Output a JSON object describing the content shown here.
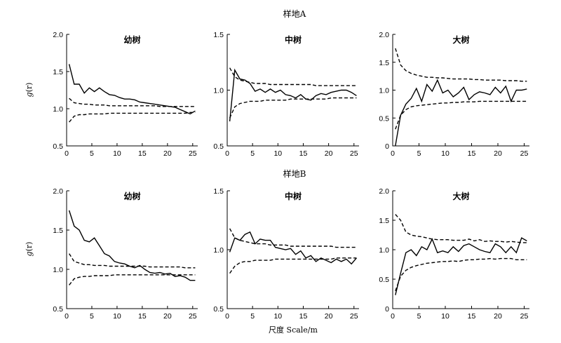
{
  "figure": {
    "row_titles": [
      "样地A",
      "样地B"
    ],
    "xlabel": "尺度 Scale/m",
    "ylabel_main": "g",
    "ylabel_arg": "(r)"
  },
  "chart_data": [
    {
      "type": "line",
      "site": "样地A",
      "title": "幼树",
      "xlim": [
        0,
        26
      ],
      "ylim": [
        0.5,
        2.0
      ],
      "xticks": [
        0,
        5,
        10,
        15,
        20,
        25
      ],
      "yticks": [
        0.5,
        1.0,
        1.5,
        2.0
      ],
      "ytick_labels": [
        "0.5",
        "1.0",
        "1.5",
        "2.0"
      ],
      "x": [
        0.5,
        1.5,
        2.5,
        3.5,
        4.5,
        5.5,
        6.5,
        7.5,
        8.5,
        9.5,
        10.5,
        11.5,
        12.5,
        13.5,
        14.5,
        15.5,
        16.5,
        17.5,
        18.5,
        19.5,
        20.5,
        21.5,
        22.5,
        23.5,
        24.5,
        25.5
      ],
      "series": [
        {
          "role": "observed",
          "values": [
            1.6,
            1.33,
            1.33,
            1.21,
            1.28,
            1.23,
            1.28,
            1.23,
            1.19,
            1.18,
            1.15,
            1.13,
            1.13,
            1.12,
            1.09,
            1.08,
            1.07,
            1.06,
            1.05,
            1.04,
            1.03,
            1.02,
            0.99,
            0.96,
            0.93,
            0.97
          ]
        },
        {
          "role": "upper",
          "values": [
            1.14,
            1.08,
            1.07,
            1.06,
            1.06,
            1.05,
            1.05,
            1.05,
            1.04,
            1.04,
            1.04,
            1.04,
            1.04,
            1.04,
            1.04,
            1.04,
            1.04,
            1.04,
            1.03,
            1.03,
            1.03,
            1.03,
            1.03,
            1.03,
            1.03,
            1.03
          ]
        },
        {
          "role": "lower",
          "values": [
            0.82,
            0.9,
            0.92,
            0.92,
            0.93,
            0.93,
            0.93,
            0.93,
            0.94,
            0.94,
            0.94,
            0.94,
            0.94,
            0.94,
            0.94,
            0.94,
            0.94,
            0.94,
            0.94,
            0.94,
            0.94,
            0.94,
            0.94,
            0.94,
            0.95,
            0.95
          ]
        }
      ]
    },
    {
      "type": "line",
      "site": "样地A",
      "title": "中树",
      "xlim": [
        0,
        26
      ],
      "ylim": [
        0.5,
        1.5
      ],
      "xticks": [
        0,
        5,
        10,
        15,
        20,
        25
      ],
      "yticks": [
        0.5,
        1.0,
        1.5
      ],
      "ytick_labels": [
        "0.5",
        "1.0",
        "1.5"
      ],
      "x": [
        0.5,
        1.5,
        2.5,
        3.5,
        4.5,
        5.5,
        6.5,
        7.5,
        8.5,
        9.5,
        10.5,
        11.5,
        12.5,
        13.5,
        14.5,
        15.5,
        16.5,
        17.5,
        18.5,
        19.5,
        20.5,
        21.5,
        22.5,
        23.5,
        24.5,
        25.5
      ],
      "series": [
        {
          "role": "observed",
          "values": [
            0.72,
            1.18,
            1.1,
            1.09,
            1.06,
            0.99,
            1.01,
            0.98,
            1.01,
            0.98,
            1.0,
            0.96,
            0.95,
            0.93,
            0.96,
            0.92,
            0.91,
            0.95,
            0.97,
            0.96,
            0.98,
            0.99,
            1.0,
            1.0,
            0.98,
            0.95
          ]
        },
        {
          "role": "upper",
          "values": [
            1.2,
            1.12,
            1.09,
            1.08,
            1.07,
            1.06,
            1.06,
            1.06,
            1.05,
            1.05,
            1.05,
            1.05,
            1.05,
            1.05,
            1.05,
            1.05,
            1.05,
            1.04,
            1.04,
            1.04,
            1.04,
            1.04,
            1.04,
            1.04,
            1.04,
            1.04
          ]
        },
        {
          "role": "lower",
          "values": [
            0.75,
            0.85,
            0.88,
            0.89,
            0.9,
            0.9,
            0.9,
            0.91,
            0.91,
            0.91,
            0.91,
            0.91,
            0.92,
            0.92,
            0.92,
            0.92,
            0.92,
            0.92,
            0.92,
            0.92,
            0.93,
            0.93,
            0.93,
            0.93,
            0.93,
            0.93
          ]
        }
      ]
    },
    {
      "type": "line",
      "site": "样地A",
      "title": "大树",
      "xlim": [
        0,
        26
      ],
      "ylim": [
        0,
        2.0
      ],
      "xticks": [
        0,
        5,
        10,
        15,
        20,
        25
      ],
      "yticks": [
        0,
        0.5,
        1.0,
        1.5,
        2.0
      ],
      "ytick_labels": [
        "0",
        "0.5",
        "1.0",
        "1.5",
        "2.0"
      ],
      "x": [
        0.5,
        1.5,
        2.5,
        3.5,
        4.5,
        5.5,
        6.5,
        7.5,
        8.5,
        9.5,
        10.5,
        11.5,
        12.5,
        13.5,
        14.5,
        15.5,
        16.5,
        17.5,
        18.5,
        19.5,
        20.5,
        21.5,
        22.5,
        23.5,
        24.5,
        25.5
      ],
      "series": [
        {
          "role": "observed",
          "values": [
            0.0,
            0.55,
            0.75,
            0.85,
            1.03,
            0.8,
            1.1,
            0.98,
            1.18,
            0.95,
            1.0,
            0.88,
            0.95,
            1.05,
            0.83,
            0.92,
            0.97,
            0.95,
            0.92,
            1.05,
            0.95,
            1.07,
            0.8,
            1.0,
            1.0,
            1.02
          ]
        },
        {
          "role": "upper",
          "values": [
            1.75,
            1.45,
            1.35,
            1.3,
            1.27,
            1.25,
            1.23,
            1.23,
            1.22,
            1.22,
            1.21,
            1.2,
            1.2,
            1.2,
            1.2,
            1.19,
            1.19,
            1.18,
            1.18,
            1.18,
            1.18,
            1.17,
            1.17,
            1.17,
            1.16,
            1.16
          ]
        },
        {
          "role": "lower",
          "values": [
            0.3,
            0.55,
            0.65,
            0.7,
            0.72,
            0.73,
            0.74,
            0.75,
            0.76,
            0.77,
            0.77,
            0.78,
            0.78,
            0.79,
            0.79,
            0.79,
            0.8,
            0.8,
            0.8,
            0.8,
            0.8,
            0.8,
            0.8,
            0.8,
            0.8,
            0.8
          ]
        }
      ]
    },
    {
      "type": "line",
      "site": "样地B",
      "title": "幼树",
      "xlim": [
        0,
        26
      ],
      "ylim": [
        0.5,
        2.0
      ],
      "xticks": [
        0,
        5,
        10,
        15,
        20,
        25
      ],
      "yticks": [
        0.5,
        1.0,
        1.5,
        2.0
      ],
      "ytick_labels": [
        "0.5",
        "1.0",
        "1.5",
        "2.0"
      ],
      "x": [
        0.5,
        1.5,
        2.5,
        3.5,
        4.5,
        5.5,
        6.5,
        7.5,
        8.5,
        9.5,
        10.5,
        11.5,
        12.5,
        13.5,
        14.5,
        15.5,
        16.5,
        17.5,
        18.5,
        19.5,
        20.5,
        21.5,
        22.5,
        23.5,
        24.5,
        25.5
      ],
      "series": [
        {
          "role": "observed",
          "values": [
            1.75,
            1.55,
            1.5,
            1.37,
            1.35,
            1.4,
            1.3,
            1.2,
            1.17,
            1.1,
            1.08,
            1.07,
            1.04,
            1.02,
            1.05,
            1.0,
            0.96,
            0.95,
            0.96,
            0.94,
            0.95,
            0.91,
            0.92,
            0.9,
            0.86,
            0.86
          ]
        },
        {
          "role": "upper",
          "values": [
            1.2,
            1.1,
            1.08,
            1.06,
            1.06,
            1.05,
            1.05,
            1.05,
            1.04,
            1.04,
            1.04,
            1.04,
            1.04,
            1.04,
            1.04,
            1.04,
            1.03,
            1.03,
            1.03,
            1.03,
            1.03,
            1.03,
            1.03,
            1.02,
            1.02,
            1.02
          ]
        },
        {
          "role": "lower",
          "values": [
            0.8,
            0.88,
            0.9,
            0.91,
            0.91,
            0.92,
            0.92,
            0.92,
            0.92,
            0.93,
            0.93,
            0.93,
            0.93,
            0.93,
            0.93,
            0.93,
            0.93,
            0.93,
            0.93,
            0.93,
            0.93,
            0.93,
            0.93,
            0.93,
            0.93,
            0.93
          ]
        }
      ]
    },
    {
      "type": "line",
      "site": "样地B",
      "title": "中树",
      "xlim": [
        0,
        26
      ],
      "ylim": [
        0.5,
        1.5
      ],
      "xticks": [
        0,
        5,
        10,
        15,
        20,
        25
      ],
      "yticks": [
        0.5,
        1.0,
        1.5
      ],
      "ytick_labels": [
        "0.5",
        "1.0",
        "1.5"
      ],
      "x": [
        0.5,
        1.5,
        2.5,
        3.5,
        4.5,
        5.5,
        6.5,
        7.5,
        8.5,
        9.5,
        10.5,
        11.5,
        12.5,
        13.5,
        14.5,
        15.5,
        16.5,
        17.5,
        18.5,
        19.5,
        20.5,
        21.5,
        22.5,
        23.5,
        24.5,
        25.5
      ],
      "series": [
        {
          "role": "observed",
          "values": [
            0.98,
            1.1,
            1.08,
            1.13,
            1.15,
            1.05,
            1.09,
            1.08,
            1.08,
            1.02,
            1.01,
            1.0,
            1.01,
            0.96,
            0.99,
            0.93,
            0.95,
            0.9,
            0.93,
            0.91,
            0.89,
            0.92,
            0.9,
            0.92,
            0.88,
            0.93
          ]
        },
        {
          "role": "upper",
          "values": [
            1.18,
            1.1,
            1.08,
            1.07,
            1.06,
            1.05,
            1.05,
            1.05,
            1.04,
            1.04,
            1.04,
            1.04,
            1.03,
            1.03,
            1.03,
            1.03,
            1.03,
            1.03,
            1.03,
            1.03,
            1.03,
            1.02,
            1.02,
            1.02,
            1.02,
            1.02
          ]
        },
        {
          "role": "lower",
          "values": [
            0.8,
            0.86,
            0.89,
            0.9,
            0.9,
            0.91,
            0.91,
            0.91,
            0.91,
            0.92,
            0.92,
            0.92,
            0.92,
            0.92,
            0.92,
            0.92,
            0.92,
            0.92,
            0.92,
            0.92,
            0.92,
            0.93,
            0.93,
            0.93,
            0.93,
            0.93
          ]
        }
      ]
    },
    {
      "type": "line",
      "site": "样地B",
      "title": "大树",
      "xlim": [
        0,
        26
      ],
      "ylim": [
        0,
        2.0
      ],
      "xticks": [
        0,
        5,
        10,
        15,
        20,
        25
      ],
      "yticks": [
        0,
        0.5,
        1.0,
        1.5,
        2.0
      ],
      "ytick_labels": [
        "0",
        "0.5",
        "1.0",
        "1.5",
        "2.0"
      ],
      "x": [
        0.5,
        1.5,
        2.5,
        3.5,
        4.5,
        5.5,
        6.5,
        7.5,
        8.5,
        9.5,
        10.5,
        11.5,
        12.5,
        13.5,
        14.5,
        15.5,
        16.5,
        17.5,
        18.5,
        19.5,
        20.5,
        21.5,
        22.5,
        23.5,
        24.5,
        25.5
      ],
      "series": [
        {
          "role": "observed",
          "values": [
            0.23,
            0.6,
            0.95,
            1.0,
            0.9,
            1.05,
            1.0,
            1.18,
            0.95,
            0.98,
            0.95,
            1.05,
            0.97,
            1.07,
            1.1,
            1.05,
            1.0,
            0.97,
            0.95,
            1.1,
            1.05,
            0.95,
            1.05,
            0.95,
            1.2,
            1.15
          ]
        },
        {
          "role": "upper",
          "values": [
            1.6,
            1.5,
            1.3,
            1.25,
            1.23,
            1.22,
            1.2,
            1.18,
            1.17,
            1.17,
            1.17,
            1.16,
            1.16,
            1.16,
            1.18,
            1.15,
            1.17,
            1.14,
            1.15,
            1.14,
            1.14,
            1.13,
            1.14,
            1.13,
            1.12,
            1.12
          ]
        },
        {
          "role": "lower",
          "values": [
            0.3,
            0.55,
            0.65,
            0.7,
            0.73,
            0.75,
            0.77,
            0.78,
            0.79,
            0.8,
            0.8,
            0.81,
            0.8,
            0.82,
            0.83,
            0.83,
            0.84,
            0.84,
            0.85,
            0.84,
            0.85,
            0.85,
            0.85,
            0.83,
            0.83,
            0.83
          ]
        }
      ]
    }
  ]
}
